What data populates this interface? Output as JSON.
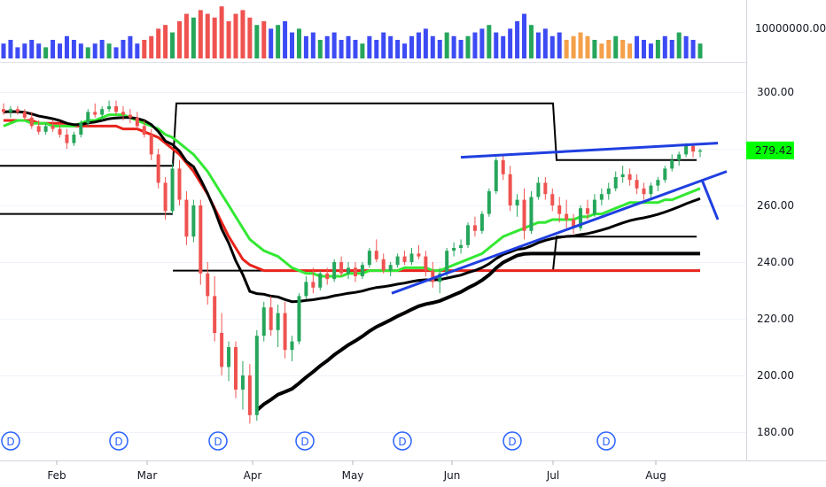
{
  "chart_data": {
    "type": "candlestick",
    "title": "",
    "price_axis": {
      "ticks": [
        "180.00",
        "200.00",
        "220.00",
        "240.00",
        "260.00",
        "280.00",
        "300.00"
      ],
      "range": [
        176,
        310
      ]
    },
    "volume_axis": {
      "ticks": [
        "10000000.00"
      ],
      "range": [
        0,
        14000000
      ]
    },
    "time_axis": {
      "labels": [
        "Feb",
        "Mar",
        "Apr",
        "May",
        "Jun",
        "Jul",
        "Aug"
      ]
    },
    "last_price": {
      "label": "279.42",
      "value": 279.42,
      "color": "#00ff00"
    },
    "dividend_markers": {
      "label": "D",
      "count": 7,
      "color": "#2962ff"
    },
    "colors": {
      "up": "#26a69a",
      "up_candle": "#26a65b",
      "down": "#ef5350",
      "volume_up": "#26a65b",
      "volume_down": "#ef5350",
      "volume_neutral": "#3d4bf4",
      "volume_orange": "#f5a04a",
      "ma_fast": "#33e833",
      "ma_mid": "#e8231b",
      "ma_slow": "#000000",
      "trendline": "#1f3fe0",
      "box": "#000000"
    },
    "series": [
      {
        "kind": "candles",
        "values": [
          [
            294,
            296,
            292,
            293
          ],
          [
            293,
            295,
            291,
            294
          ],
          [
            294,
            295,
            292,
            293
          ],
          [
            293,
            294,
            290,
            291
          ],
          [
            291,
            293,
            287,
            288
          ],
          [
            288,
            290,
            285,
            286
          ],
          [
            286,
            289,
            285,
            288
          ],
          [
            288,
            290,
            286,
            287
          ],
          [
            287,
            289,
            284,
            285
          ],
          [
            285,
            287,
            280,
            282
          ],
          [
            282,
            286,
            281,
            285
          ],
          [
            285,
            290,
            284,
            289
          ],
          [
            289,
            294,
            288,
            293
          ],
          [
            293,
            296,
            291,
            292
          ],
          [
            292,
            295,
            290,
            294
          ],
          [
            294,
            297,
            293,
            295
          ],
          [
            295,
            297,
            292,
            293
          ],
          [
            293,
            295,
            290,
            292
          ],
          [
            292,
            294,
            289,
            291
          ],
          [
            291,
            293,
            287,
            288
          ],
          [
            288,
            290,
            284,
            285
          ],
          [
            285,
            287,
            276,
            278
          ],
          [
            278,
            280,
            266,
            268
          ],
          [
            268,
            270,
            255,
            258
          ],
          [
            258,
            275,
            257,
            273
          ],
          [
            273,
            276,
            260,
            262
          ],
          [
            262,
            265,
            246,
            249
          ],
          [
            249,
            262,
            247,
            260
          ],
          [
            260,
            262,
            232,
            236
          ],
          [
            236,
            240,
            225,
            228
          ],
          [
            228,
            235,
            212,
            215
          ],
          [
            215,
            222,
            200,
            203
          ],
          [
            203,
            212,
            198,
            210
          ],
          [
            210,
            212,
            192,
            195
          ],
          [
            195,
            205,
            188,
            200
          ],
          [
            200,
            204,
            183,
            186
          ],
          [
            186,
            216,
            184,
            214
          ],
          [
            214,
            226,
            212,
            224
          ],
          [
            224,
            228,
            214,
            216
          ],
          [
            216,
            225,
            210,
            222
          ],
          [
            222,
            226,
            206,
            209
          ],
          [
            209,
            214,
            205,
            212
          ],
          [
            212,
            229,
            211,
            228
          ],
          [
            228,
            235,
            227,
            233
          ],
          [
            233,
            238,
            229,
            231
          ],
          [
            231,
            237,
            230,
            236
          ],
          [
            236,
            238,
            232,
            234
          ],
          [
            234,
            241,
            233,
            240
          ],
          [
            240,
            242,
            235,
            236
          ],
          [
            236,
            240,
            234,
            238
          ],
          [
            238,
            240,
            233,
            235
          ],
          [
            235,
            240,
            234,
            239
          ],
          [
            239,
            245,
            238,
            244
          ],
          [
            244,
            248,
            240,
            241
          ],
          [
            241,
            243,
            236,
            237
          ],
          [
            237,
            240,
            235,
            239
          ],
          [
            239,
            243,
            238,
            242
          ],
          [
            242,
            244,
            239,
            240
          ],
          [
            240,
            245,
            239,
            243
          ],
          [
            243,
            246,
            241,
            242
          ],
          [
            242,
            244,
            235,
            237
          ],
          [
            237,
            240,
            231,
            233
          ],
          [
            233,
            238,
            229,
            236
          ],
          [
            236,
            245,
            235,
            244
          ],
          [
            244,
            247,
            242,
            245
          ],
          [
            245,
            248,
            243,
            246
          ],
          [
            246,
            254,
            245,
            253
          ],
          [
            253,
            256,
            249,
            251
          ],
          [
            251,
            258,
            250,
            257
          ],
          [
            257,
            266,
            256,
            265
          ],
          [
            265,
            277,
            264,
            276
          ],
          [
            276,
            278,
            269,
            271
          ],
          [
            271,
            274,
            258,
            260
          ],
          [
            260,
            264,
            256,
            262
          ],
          [
            262,
            266,
            248,
            251
          ],
          [
            251,
            265,
            250,
            263
          ],
          [
            263,
            270,
            262,
            268
          ],
          [
            268,
            270,
            262,
            264
          ],
          [
            264,
            266,
            258,
            260
          ],
          [
            260,
            263,
            254,
            257
          ],
          [
            257,
            262,
            252,
            255
          ],
          [
            255,
            257,
            250,
            252
          ],
          [
            252,
            260,
            251,
            259
          ],
          [
            259,
            262,
            255,
            257
          ],
          [
            257,
            264,
            256,
            262
          ],
          [
            262,
            266,
            260,
            264
          ],
          [
            264,
            268,
            262,
            266
          ],
          [
            266,
            272,
            265,
            270
          ],
          [
            270,
            274,
            268,
            271
          ],
          [
            271,
            273,
            267,
            269
          ],
          [
            269,
            271,
            264,
            266
          ],
          [
            266,
            268,
            262,
            264
          ],
          [
            264,
            268,
            262,
            267
          ],
          [
            267,
            270,
            265,
            269
          ],
          [
            269,
            274,
            268,
            273
          ],
          [
            273,
            278,
            272,
            276
          ],
          [
            276,
            279,
            274,
            278
          ],
          [
            278,
            282,
            277,
            281
          ],
          [
            281,
            282,
            277,
            279
          ],
          [
            279,
            280,
            277,
            279.42
          ]
        ]
      },
      {
        "kind": "volume",
        "values": [
          4,
          5,
          3,
          4,
          5,
          4,
          3,
          5,
          4,
          6,
          5,
          4,
          3,
          4,
          5,
          4,
          3,
          5,
          6,
          4,
          5,
          6,
          8,
          9,
          7,
          10,
          12,
          11,
          13,
          12,
          11,
          14,
          10,
          12,
          13,
          11,
          9,
          10,
          8,
          9,
          10,
          7,
          8,
          6,
          7,
          5,
          6,
          7,
          5,
          6,
          5,
          4,
          6,
          5,
          7,
          6,
          5,
          4,
          6,
          7,
          8,
          6,
          5,
          7,
          6,
          5,
          6,
          7,
          8,
          9,
          7,
          6,
          8,
          10,
          12,
          9,
          7,
          8,
          6,
          7,
          5,
          6,
          7,
          6,
          5,
          4,
          5,
          6,
          5,
          4,
          6,
          5,
          4,
          5,
          6,
          5,
          7,
          6,
          5,
          4
        ]
      },
      {
        "name": "",
        "kind": "ma_fast",
        "values": [
          288,
          289,
          290,
          290,
          289,
          289,
          289,
          288,
          288,
          288,
          288,
          289,
          290,
          290,
          291,
          292,
          292,
          292,
          291,
          290,
          289,
          288,
          287,
          285,
          284,
          282,
          280,
          278,
          275,
          272,
          268,
          264,
          260,
          256,
          252,
          248,
          246,
          244,
          243,
          242,
          240,
          238,
          237,
          236,
          236,
          235,
          235,
          235,
          235,
          236,
          236,
          236,
          237,
          237,
          237,
          237,
          237,
          238,
          238,
          238,
          238,
          237,
          237,
          238,
          239,
          240,
          241,
          242,
          243,
          245,
          247,
          249,
          250,
          251,
          252,
          253,
          254,
          254,
          255,
          255,
          255,
          255,
          256,
          256,
          257,
          257,
          258,
          259,
          260,
          261,
          261,
          261,
          261,
          261,
          262,
          262,
          263,
          264,
          265,
          266
        ]
      },
      {
        "name": "",
        "kind": "ma_mid",
        "values": [
          290,
          290,
          290,
          290,
          290,
          289,
          289,
          289,
          289,
          289,
          288,
          288,
          288,
          288,
          288,
          288,
          288,
          287,
          287,
          287,
          286,
          285,
          284,
          282,
          280,
          278,
          275,
          272,
          268,
          264,
          259,
          254,
          249,
          245,
          241,
          239,
          238,
          237,
          237,
          237,
          237,
          237,
          237,
          237,
          237,
          237,
          237,
          237,
          237,
          237,
          237,
          237,
          237,
          237,
          237,
          237,
          237,
          237,
          237,
          237,
          237,
          237,
          237,
          237,
          237,
          237,
          237,
          237,
          237,
          237,
          237,
          237,
          237,
          237,
          237,
          237,
          237,
          237,
          237,
          237,
          237,
          237,
          237,
          237,
          237,
          237,
          237,
          237,
          237,
          237,
          237,
          237,
          237,
          237,
          237,
          237,
          237,
          237,
          237,
          237
        ]
      },
      {
        "name": "",
        "kind": "ma_slow",
        "values": [
          null
        ]
      }
    ]
  }
}
